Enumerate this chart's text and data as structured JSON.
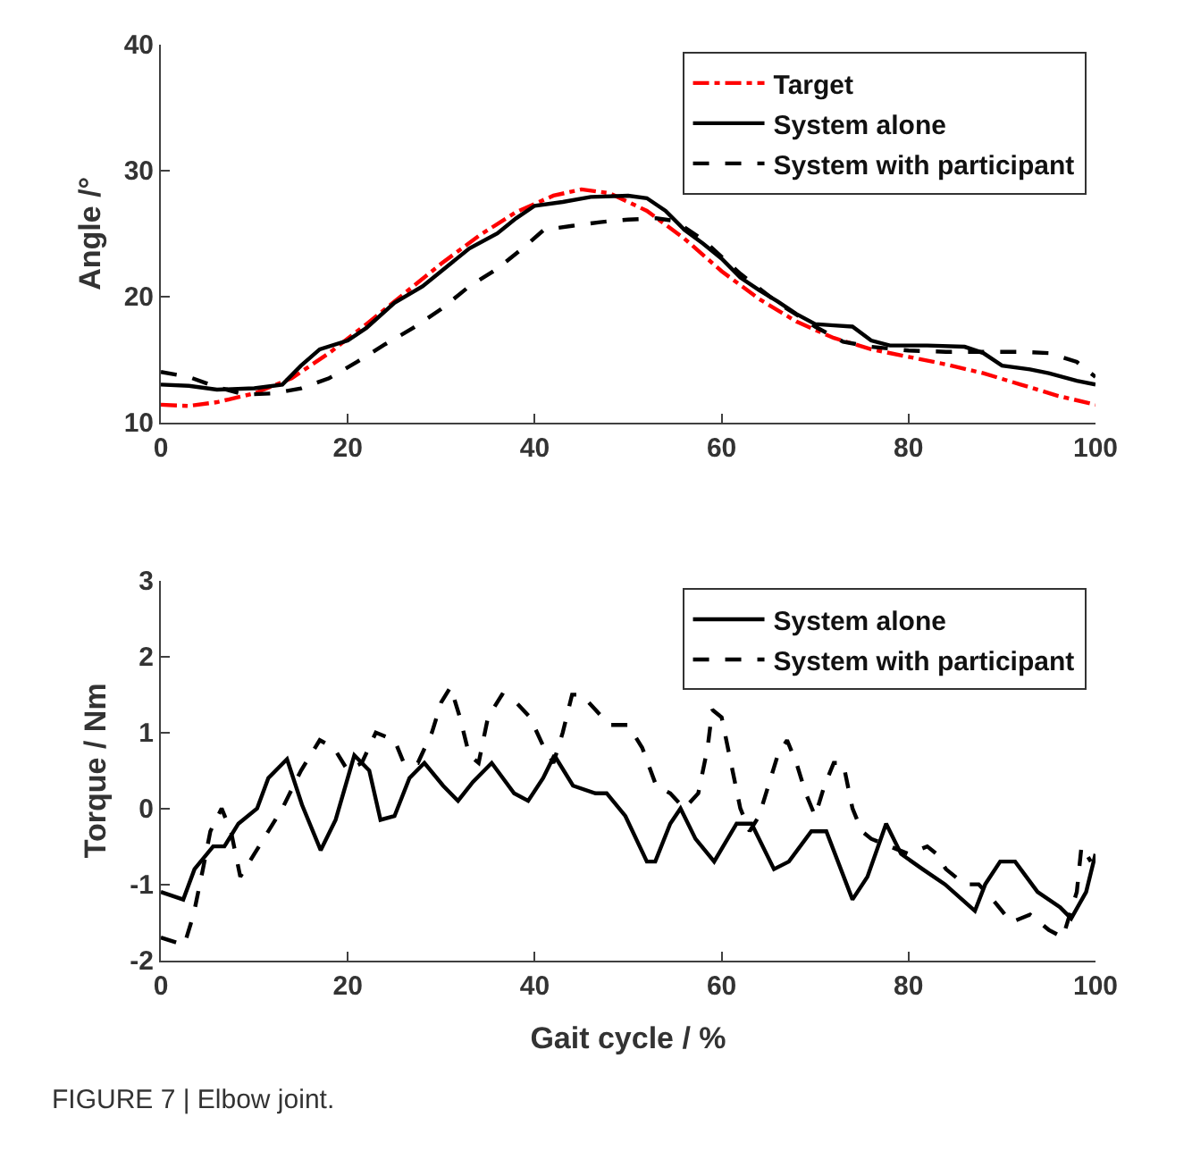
{
  "chart_data": [
    {
      "type": "line",
      "ylabel": "Angle /°",
      "xlim": [
        0,
        100
      ],
      "xticks": [
        0,
        20,
        40,
        60,
        80,
        100
      ],
      "ylim": [
        10,
        40
      ],
      "yticks": [
        10,
        20,
        30,
        40
      ],
      "legend": "top right",
      "series": [
        {
          "name": "Target",
          "color": "#ff0000",
          "line_style": "dashdot",
          "x": [
            0,
            3,
            6,
            10,
            14,
            18,
            22,
            26,
            30,
            34,
            38,
            42,
            45,
            48,
            52,
            56,
            60,
            64,
            68,
            72,
            76,
            80,
            84,
            88,
            92,
            96,
            100
          ],
          "values": [
            11.4,
            11.3,
            11.6,
            12.3,
            13.5,
            15.5,
            17.8,
            20.2,
            22.6,
            24.8,
            26.7,
            28,
            28.5,
            28.2,
            26.8,
            24.6,
            22,
            19.8,
            18,
            16.7,
            15.8,
            15.2,
            14.6,
            13.9,
            13,
            12.1,
            11.4
          ]
        },
        {
          "name": "System alone",
          "color": "#000000",
          "line_style": "solid",
          "x": [
            0,
            3,
            6,
            10,
            13,
            15,
            17,
            20,
            22,
            25,
            28,
            30,
            33,
            36,
            38,
            40,
            43,
            46,
            50,
            52,
            54,
            56,
            58,
            60,
            62,
            64,
            66,
            68,
            70,
            72,
            74,
            76,
            78,
            82,
            86,
            88,
            90,
            93,
            95,
            98,
            100
          ],
          "values": [
            13,
            12.9,
            12.6,
            12.7,
            13,
            14.5,
            15.8,
            16.5,
            17.5,
            19.5,
            20.8,
            22,
            23.8,
            25,
            26.2,
            27.2,
            27.5,
            27.9,
            28,
            27.8,
            26.8,
            25.3,
            24.2,
            23,
            21.5,
            20.5,
            19.6,
            18.6,
            17.8,
            17.7,
            17.6,
            16.5,
            16.1,
            16.1,
            16,
            15.5,
            14.5,
            14.2,
            13.9,
            13.3,
            13
          ]
        },
        {
          "name": "System with participant",
          "color": "#000000",
          "line_style": "dashed",
          "x": [
            0,
            3,
            6,
            9,
            12,
            15,
            18,
            21,
            24,
            27,
            30,
            33,
            36,
            39,
            41,
            44,
            47,
            50,
            53,
            55,
            58,
            62,
            66,
            70,
            73,
            76,
            80,
            84,
            88,
            92,
            95,
            98,
            100
          ],
          "values": [
            14,
            13.6,
            12.8,
            12.2,
            12.3,
            12.7,
            13.5,
            14.8,
            16.2,
            17.5,
            19,
            20.8,
            22.2,
            24,
            25.3,
            25.6,
            25.9,
            26.1,
            26.2,
            26,
            24.5,
            21.8,
            19.5,
            17.6,
            16.4,
            16,
            15.7,
            15.6,
            15.6,
            15.6,
            15.5,
            14.8,
            13.6
          ]
        }
      ]
    },
    {
      "type": "line",
      "xlabel": "Gait cycle / %",
      "ylabel": "Torque / Nm",
      "xlim": [
        0,
        100
      ],
      "xticks": [
        0,
        20,
        40,
        60,
        80,
        100
      ],
      "ylim": [
        -2,
        3
      ],
      "yticks": [
        -2,
        -1,
        0,
        1,
        2,
        3
      ],
      "legend": "top right",
      "annotations": [
        "FIGURE 7 | Elbow joint."
      ],
      "series": [
        {
          "name": "System alone",
          "color": "#000000",
          "line_style": "solid",
          "x": [
            0,
            2.4,
            3.6,
            5.6,
            6.8,
            8.3,
            10.3,
            11.5,
            13.5,
            15.1,
            17.1,
            18.7,
            20.7,
            22.3,
            23.5,
            25,
            26.6,
            28.2,
            30.2,
            31.8,
            33.4,
            35.4,
            37.8,
            39.3,
            40.9,
            42.1,
            44.1,
            46.5,
            47.7,
            49.7,
            52,
            52.9,
            54.5,
            55.6,
            57.2,
            59.2,
            61.6,
            63.2,
            65.6,
            67.2,
            69.6,
            71.2,
            74,
            75.6,
            77.6,
            79.2,
            81.5,
            83.9,
            87.1,
            88.2,
            89.8,
            91.4,
            93.8,
            96.2,
            97.4,
            99,
            100
          ],
          "values": [
            -1.1,
            -1.2,
            -0.8,
            -0.5,
            -0.5,
            -0.2,
            0,
            0.4,
            0.65,
            0.05,
            -0.55,
            -0.15,
            0.7,
            0.5,
            -0.15,
            -0.1,
            0.4,
            0.6,
            0.3,
            0.1,
            0.35,
            0.6,
            0.2,
            0.1,
            0.4,
            0.7,
            0.3,
            0.2,
            0.2,
            -0.1,
            -0.7,
            -0.7,
            -0.2,
            0,
            -0.4,
            -0.7,
            -0.2,
            -0.2,
            -0.8,
            -0.7,
            -0.3,
            -0.3,
            -1.2,
            -0.9,
            -0.2,
            -0.6,
            -0.8,
            -1,
            -1.35,
            -1,
            -0.7,
            -0.7,
            -1.1,
            -1.3,
            -1.45,
            -1.1,
            -0.6
          ]
        },
        {
          "name": "System with participant",
          "color": "#000000",
          "line_style": "dashed",
          "x": [
            0,
            2.5,
            3.5,
            4.5,
            5.3,
            6.5,
            7.5,
            8.5,
            10,
            11.5,
            13,
            15,
            17,
            18.5,
            20,
            21.5,
            23,
            25,
            26,
            27.5,
            29,
            30,
            31,
            32,
            33,
            34,
            35,
            36.5,
            38,
            39.5,
            41,
            42,
            43,
            44,
            45,
            46.5,
            48,
            50,
            51.5,
            53,
            54.5,
            56,
            57.5,
            58.5,
            59,
            60,
            61,
            62,
            63,
            64,
            65,
            66,
            67,
            68,
            69,
            70,
            71,
            72,
            73,
            74,
            75,
            76,
            78,
            80,
            82,
            83,
            84,
            86,
            87.5,
            89,
            91,
            93,
            95,
            96.5,
            98,
            98.5,
            99.5
          ],
          "values": [
            -1.7,
            -1.8,
            -1.4,
            -0.8,
            -0.3,
            0,
            -0.3,
            -0.9,
            -0.6,
            -0.3,
            0,
            0.5,
            0.9,
            0.8,
            0.5,
            0.6,
            1,
            0.9,
            0.6,
            0.6,
            1,
            1.4,
            1.6,
            1.2,
            0.7,
            0.6,
            1.2,
            1.5,
            1.4,
            1.2,
            0.8,
            0.6,
            1,
            1.5,
            1.5,
            1.3,
            1.1,
            1.1,
            0.8,
            0.3,
            0.2,
            0,
            0.2,
            0.8,
            1.3,
            1.2,
            0.6,
            0,
            -0.3,
            -0.1,
            0.3,
            0.7,
            0.9,
            0.6,
            0.2,
            -0.1,
            0.3,
            0.6,
            0.6,
            0,
            -0.3,
            -0.4,
            -0.5,
            -0.6,
            -0.5,
            -0.6,
            -0.8,
            -1,
            -1,
            -1.2,
            -1.5,
            -1.4,
            -1.6,
            -1.7,
            -1.1,
            -0.5,
            -0.7
          ]
        }
      ]
    }
  ]
}
